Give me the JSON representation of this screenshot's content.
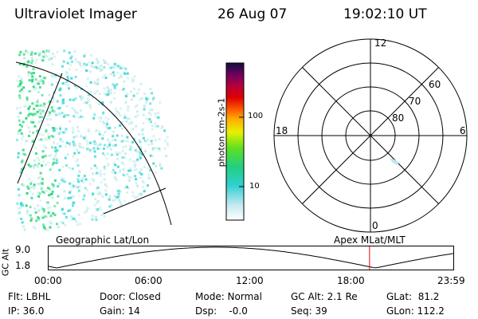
{
  "header": {
    "title": "Ultraviolet Imager",
    "date": "26 Aug 07",
    "time": "19:02:10 UT"
  },
  "colorbar": {
    "label": "photon cm-2s-1",
    "ticks": [
      "100",
      "10"
    ]
  },
  "polar": {
    "mlt_labels": {
      "top": "12",
      "bottom": "0",
      "left": "18",
      "right": "6"
    },
    "lat_labels": [
      "60",
      "70",
      "80"
    ]
  },
  "orbit": {
    "left_label": "Geographic Lat/Lon",
    "right_label": "Apex MLat/MLT",
    "axis_title": "GC Alt",
    "y_ticks": [
      "9.0",
      "1.8"
    ],
    "x_ticks": [
      "00:00",
      "06:00",
      "12:00",
      "18:00",
      "23:59"
    ],
    "marker_time": "19:02"
  },
  "footer": {
    "flt": "Flt: LBHL",
    "ip": "IP: 36.0",
    "door": "Door: Closed",
    "gain": "Gain: 14",
    "mode": "Mode: Normal",
    "dsp": "Dsp:    -0.0",
    "gcalt": "GC Alt: 2.1 Re",
    "seq": "Seq: 39",
    "glat": "GLat:  81.2",
    "glon": "GLon: 112.2"
  },
  "colors": {
    "marker": "#e00000",
    "aurora_high": "#30d880",
    "aurora_mid": "#40d8d8",
    "aurora_low": "#c8ecec"
  }
}
